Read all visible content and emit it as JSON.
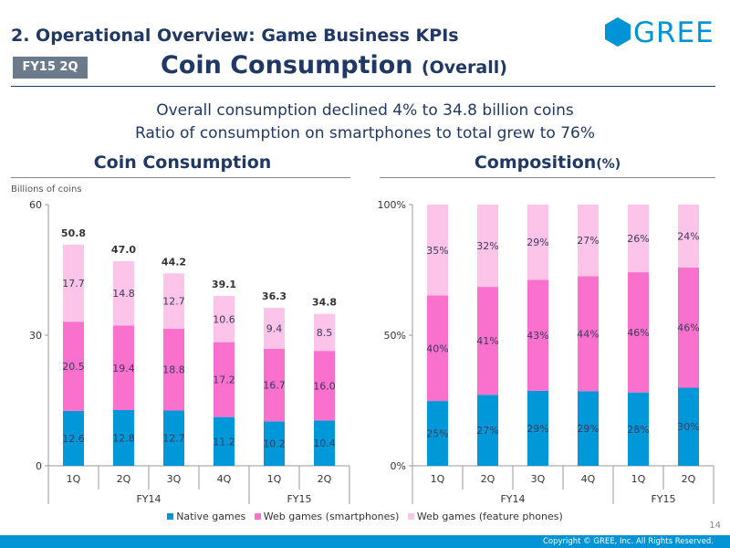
{
  "header": {
    "section_title": "2. Operational Overview: Game Business KPIs",
    "period_badge": "FY15 2Q",
    "page_title": "Coin Consumption",
    "page_title_sub": "(Overall)",
    "logo_text": "GREE"
  },
  "summary": {
    "line1": "Overall consumption declined 4% to 34.8 billion coins",
    "line2": "Ratio of consumption on smartphones to total grew to 76%"
  },
  "colors": {
    "native": "#0098d8",
    "web_smartphone": "#f971cd",
    "web_feature": "#fcc4e8",
    "accent": "#0093d6"
  },
  "chart_data": [
    {
      "type": "bar",
      "stacked": true,
      "title": "Coin Consumption",
      "ylabel": "Billions of coins",
      "ylim": [
        0,
        60
      ],
      "yticks": [
        "0",
        "30",
        "60"
      ],
      "categories": [
        "1Q",
        "2Q",
        "3Q",
        "4Q",
        "1Q",
        "2Q"
      ],
      "groups": [
        {
          "label": "FY14",
          "count": 4
        },
        {
          "label": "FY15",
          "count": 2
        }
      ],
      "totals": [
        "50.8",
        "47.0",
        "44.2",
        "39.1",
        "36.3",
        "34.8"
      ],
      "series": [
        {
          "name": "Native games",
          "values": [
            12.6,
            12.8,
            12.7,
            11.2,
            10.2,
            10.4
          ],
          "labels": [
            "12.6",
            "12.8",
            "12.7",
            "11.2",
            "10.2",
            "10.4"
          ]
        },
        {
          "name": "Web games (smartphones)",
          "values": [
            20.5,
            19.4,
            18.8,
            17.2,
            16.7,
            16.0
          ],
          "labels": [
            "20.5",
            "19.4",
            "18.8",
            "17.2",
            "16.7",
            "16.0"
          ]
        },
        {
          "name": "Web games (feature phones)",
          "values": [
            17.7,
            14.8,
            12.7,
            10.6,
            9.4,
            8.5
          ],
          "labels": [
            "17.7",
            "14.8",
            "12.7",
            "10.6",
            "9.4",
            "8.5"
          ]
        }
      ]
    },
    {
      "type": "bar",
      "stacked": true,
      "title": "Composition",
      "title_sub": "(%)",
      "ylim": [
        0,
        100
      ],
      "yticks": [
        "0%",
        "50%",
        "100%"
      ],
      "categories": [
        "1Q",
        "2Q",
        "3Q",
        "4Q",
        "1Q",
        "2Q"
      ],
      "groups": [
        {
          "label": "FY14",
          "count": 4
        },
        {
          "label": "FY15",
          "count": 2
        }
      ],
      "series": [
        {
          "name": "Native games",
          "values": [
            24.8,
            27.2,
            28.7,
            28.6,
            28.1,
            29.9
          ],
          "labels": [
            "25%",
            "27%",
            "29%",
            "29%",
            "28%",
            "30%"
          ]
        },
        {
          "name": "Web games (smartphones)",
          "values": [
            40.4,
            41.3,
            42.5,
            44.0,
            46.0,
            46.0
          ],
          "labels": [
            "40%",
            "41%",
            "43%",
            "44%",
            "46%",
            "46%"
          ]
        },
        {
          "name": "Web games (feature phones)",
          "values": [
            34.8,
            31.5,
            28.8,
            27.4,
            25.9,
            24.1
          ],
          "labels": [
            "35%",
            "32%",
            "29%",
            "27%",
            "26%",
            "24%"
          ]
        }
      ]
    }
  ],
  "legend": [
    {
      "label": "Native games"
    },
    {
      "label": "Web games (smartphones)"
    },
    {
      "label": "Web games (feature phones)"
    }
  ],
  "footer": {
    "page_number": "14",
    "copyright": "Copyright © GREE, Inc. All Rights Reserved."
  }
}
